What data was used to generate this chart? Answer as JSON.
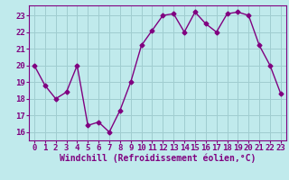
{
  "x": [
    0,
    1,
    2,
    3,
    4,
    5,
    6,
    7,
    8,
    9,
    10,
    11,
    12,
    13,
    14,
    15,
    16,
    17,
    18,
    19,
    20,
    21,
    22,
    23
  ],
  "y": [
    20.0,
    18.8,
    18.0,
    18.4,
    20.0,
    16.4,
    16.6,
    16.0,
    17.3,
    19.0,
    21.2,
    22.1,
    23.0,
    23.1,
    22.0,
    23.2,
    22.5,
    22.0,
    23.1,
    23.2,
    23.0,
    21.2,
    20.0,
    18.3
  ],
  "line_color": "#800080",
  "marker": "D",
  "marker_size": 2.5,
  "bg_color": "#c0eaec",
  "grid_color": "#a0cdd0",
  "xlabel": "Windchill (Refroidissement éolien,°C)",
  "xlabel_fontsize": 7,
  "tick_fontsize": 6.5,
  "ylim": [
    15.5,
    23.6
  ],
  "xlim": [
    -0.5,
    23.5
  ],
  "yticks": [
    16,
    17,
    18,
    19,
    20,
    21,
    22,
    23
  ],
  "xticks": [
    0,
    1,
    2,
    3,
    4,
    5,
    6,
    7,
    8,
    9,
    10,
    11,
    12,
    13,
    14,
    15,
    16,
    17,
    18,
    19,
    20,
    21,
    22,
    23
  ]
}
